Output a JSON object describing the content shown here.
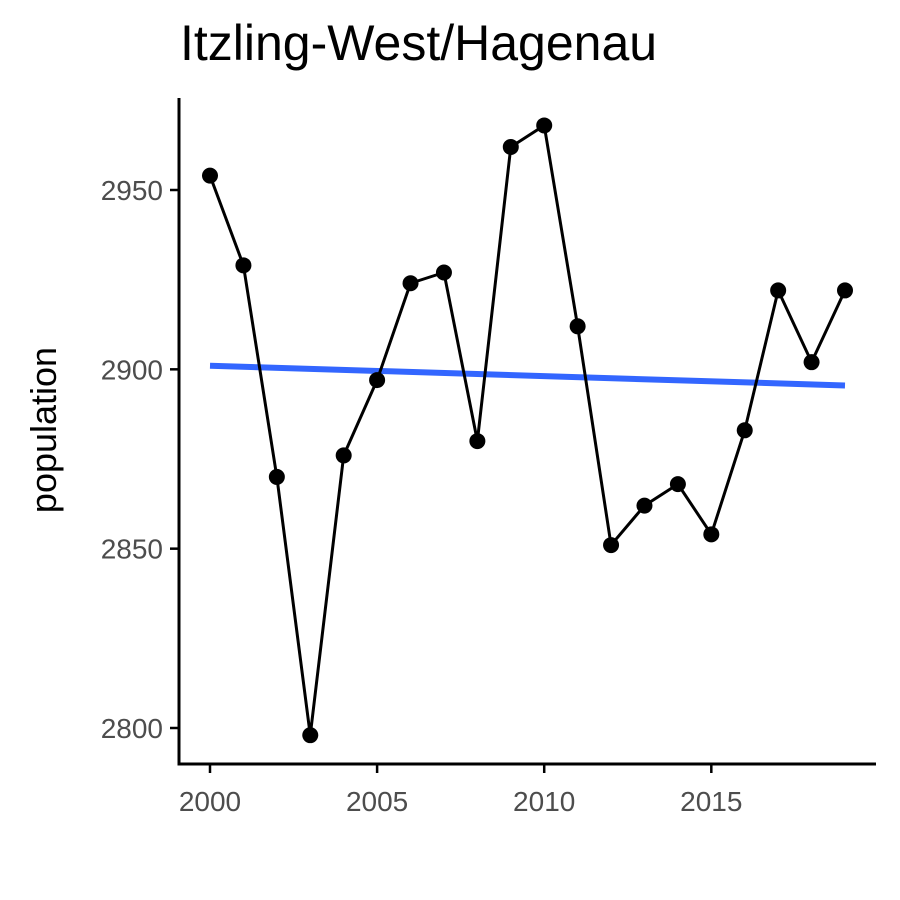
{
  "chart_data": {
    "type": "line",
    "title": "Itzling-West/Hagenau",
    "xlabel": "",
    "ylabel": "population",
    "xlim": [
      1999.1,
      2019.9
    ],
    "ylim": [
      2790,
      2975
    ],
    "x_ticks": [
      2000,
      2005,
      2010,
      2015
    ],
    "y_ticks": [
      2800,
      2850,
      2900,
      2950
    ],
    "grid": false,
    "series": [
      {
        "x": [
          2000,
          2001,
          2002,
          2003,
          2004,
          2005,
          2006,
          2007,
          2008,
          2009,
          2010,
          2011,
          2012,
          2013,
          2014,
          2015,
          2016,
          2017,
          2018,
          2019
        ],
        "values": [
          2954,
          2929,
          2870,
          2798,
          2876,
          2897,
          2924,
          2927,
          2880,
          2962,
          2968,
          2912,
          2851,
          2862,
          2868,
          2854,
          2883,
          2922,
          2902,
          2922
        ],
        "color": "#000000"
      }
    ],
    "trend_line": {
      "x": [
        2000,
        2019
      ],
      "values": [
        2901,
        2895.5
      ],
      "color": "#3366ff"
    }
  }
}
